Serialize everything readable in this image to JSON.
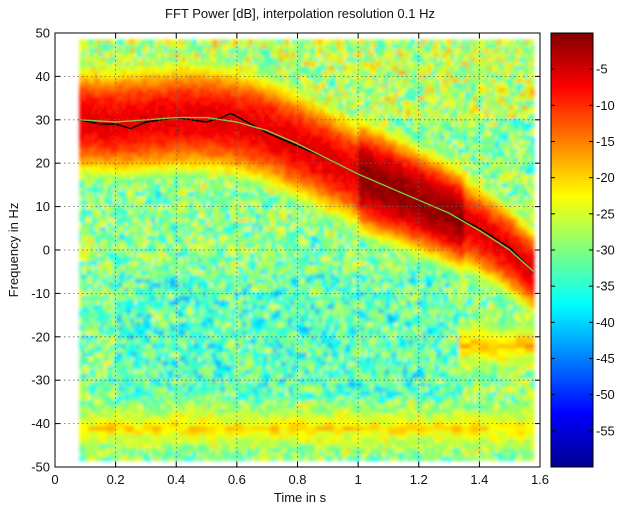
{
  "chart_data": {
    "type": "heatmap",
    "title": "FFT Power [dB], interpolation resolution 0.1 Hz",
    "xlabel": "Time in s",
    "ylabel": "Frequency in Hz",
    "xlim": [
      0,
      1.6
    ],
    "ylim": [
      -50,
      50
    ],
    "data_extent": {
      "x": [
        0.08,
        1.58
      ],
      "y": [
        -48.5,
        48.5
      ]
    },
    "xticks": [
      "0",
      "0.2",
      "0.4",
      "0.6",
      "0.8",
      "1",
      "1.2",
      "1.4",
      "1.6"
    ],
    "yticks": [
      "50",
      "40",
      "30",
      "20",
      "10",
      "0",
      "-10",
      "-20",
      "-30",
      "-40",
      "-50"
    ],
    "grid": true,
    "colorbar": {
      "range": [
        -60,
        0
      ],
      "ticks": [
        "-5",
        "-10",
        "-15",
        "-20",
        "-25",
        "-30",
        "-35",
        "-40",
        "-45",
        "-50",
        "-55"
      ],
      "colormap": "jet"
    },
    "ridge_track": {
      "name": "",
      "color": "#000000",
      "x": [
        0.08,
        0.15,
        0.2,
        0.25,
        0.3,
        0.35,
        0.4,
        0.45,
        0.5,
        0.55,
        0.58,
        0.62,
        0.7,
        0.8,
        0.9,
        1.0,
        1.1,
        1.2,
        1.3,
        1.4,
        1.5,
        1.58
      ],
      "y": [
        30,
        29,
        29,
        28,
        29.5,
        30,
        30.5,
        30,
        29.5,
        30.5,
        31.5,
        30,
        27,
        24,
        21,
        17.5,
        14.5,
        11.5,
        8.5,
        5,
        0.5,
        -5
      ]
    },
    "model_curve": {
      "name": "",
      "color": "#8ec63f",
      "x": [
        0.08,
        0.2,
        0.3,
        0.4,
        0.5,
        0.6,
        0.7,
        0.8,
        0.9,
        1.0,
        1.1,
        1.2,
        1.3,
        1.4,
        1.5,
        1.58
      ],
      "y": [
        30,
        29.5,
        30,
        30.5,
        30.5,
        29.5,
        27.5,
        24.5,
        21,
        17.5,
        14.5,
        11.5,
        8.5,
        4.5,
        0,
        -5
      ]
    },
    "bands": [
      {
        "x": [
          0.08,
          1.58
        ],
        "y": -41,
        "level_db": -20
      },
      {
        "x": [
          1.33,
          1.58
        ],
        "y": -22,
        "level_db": -18
      }
    ]
  }
}
